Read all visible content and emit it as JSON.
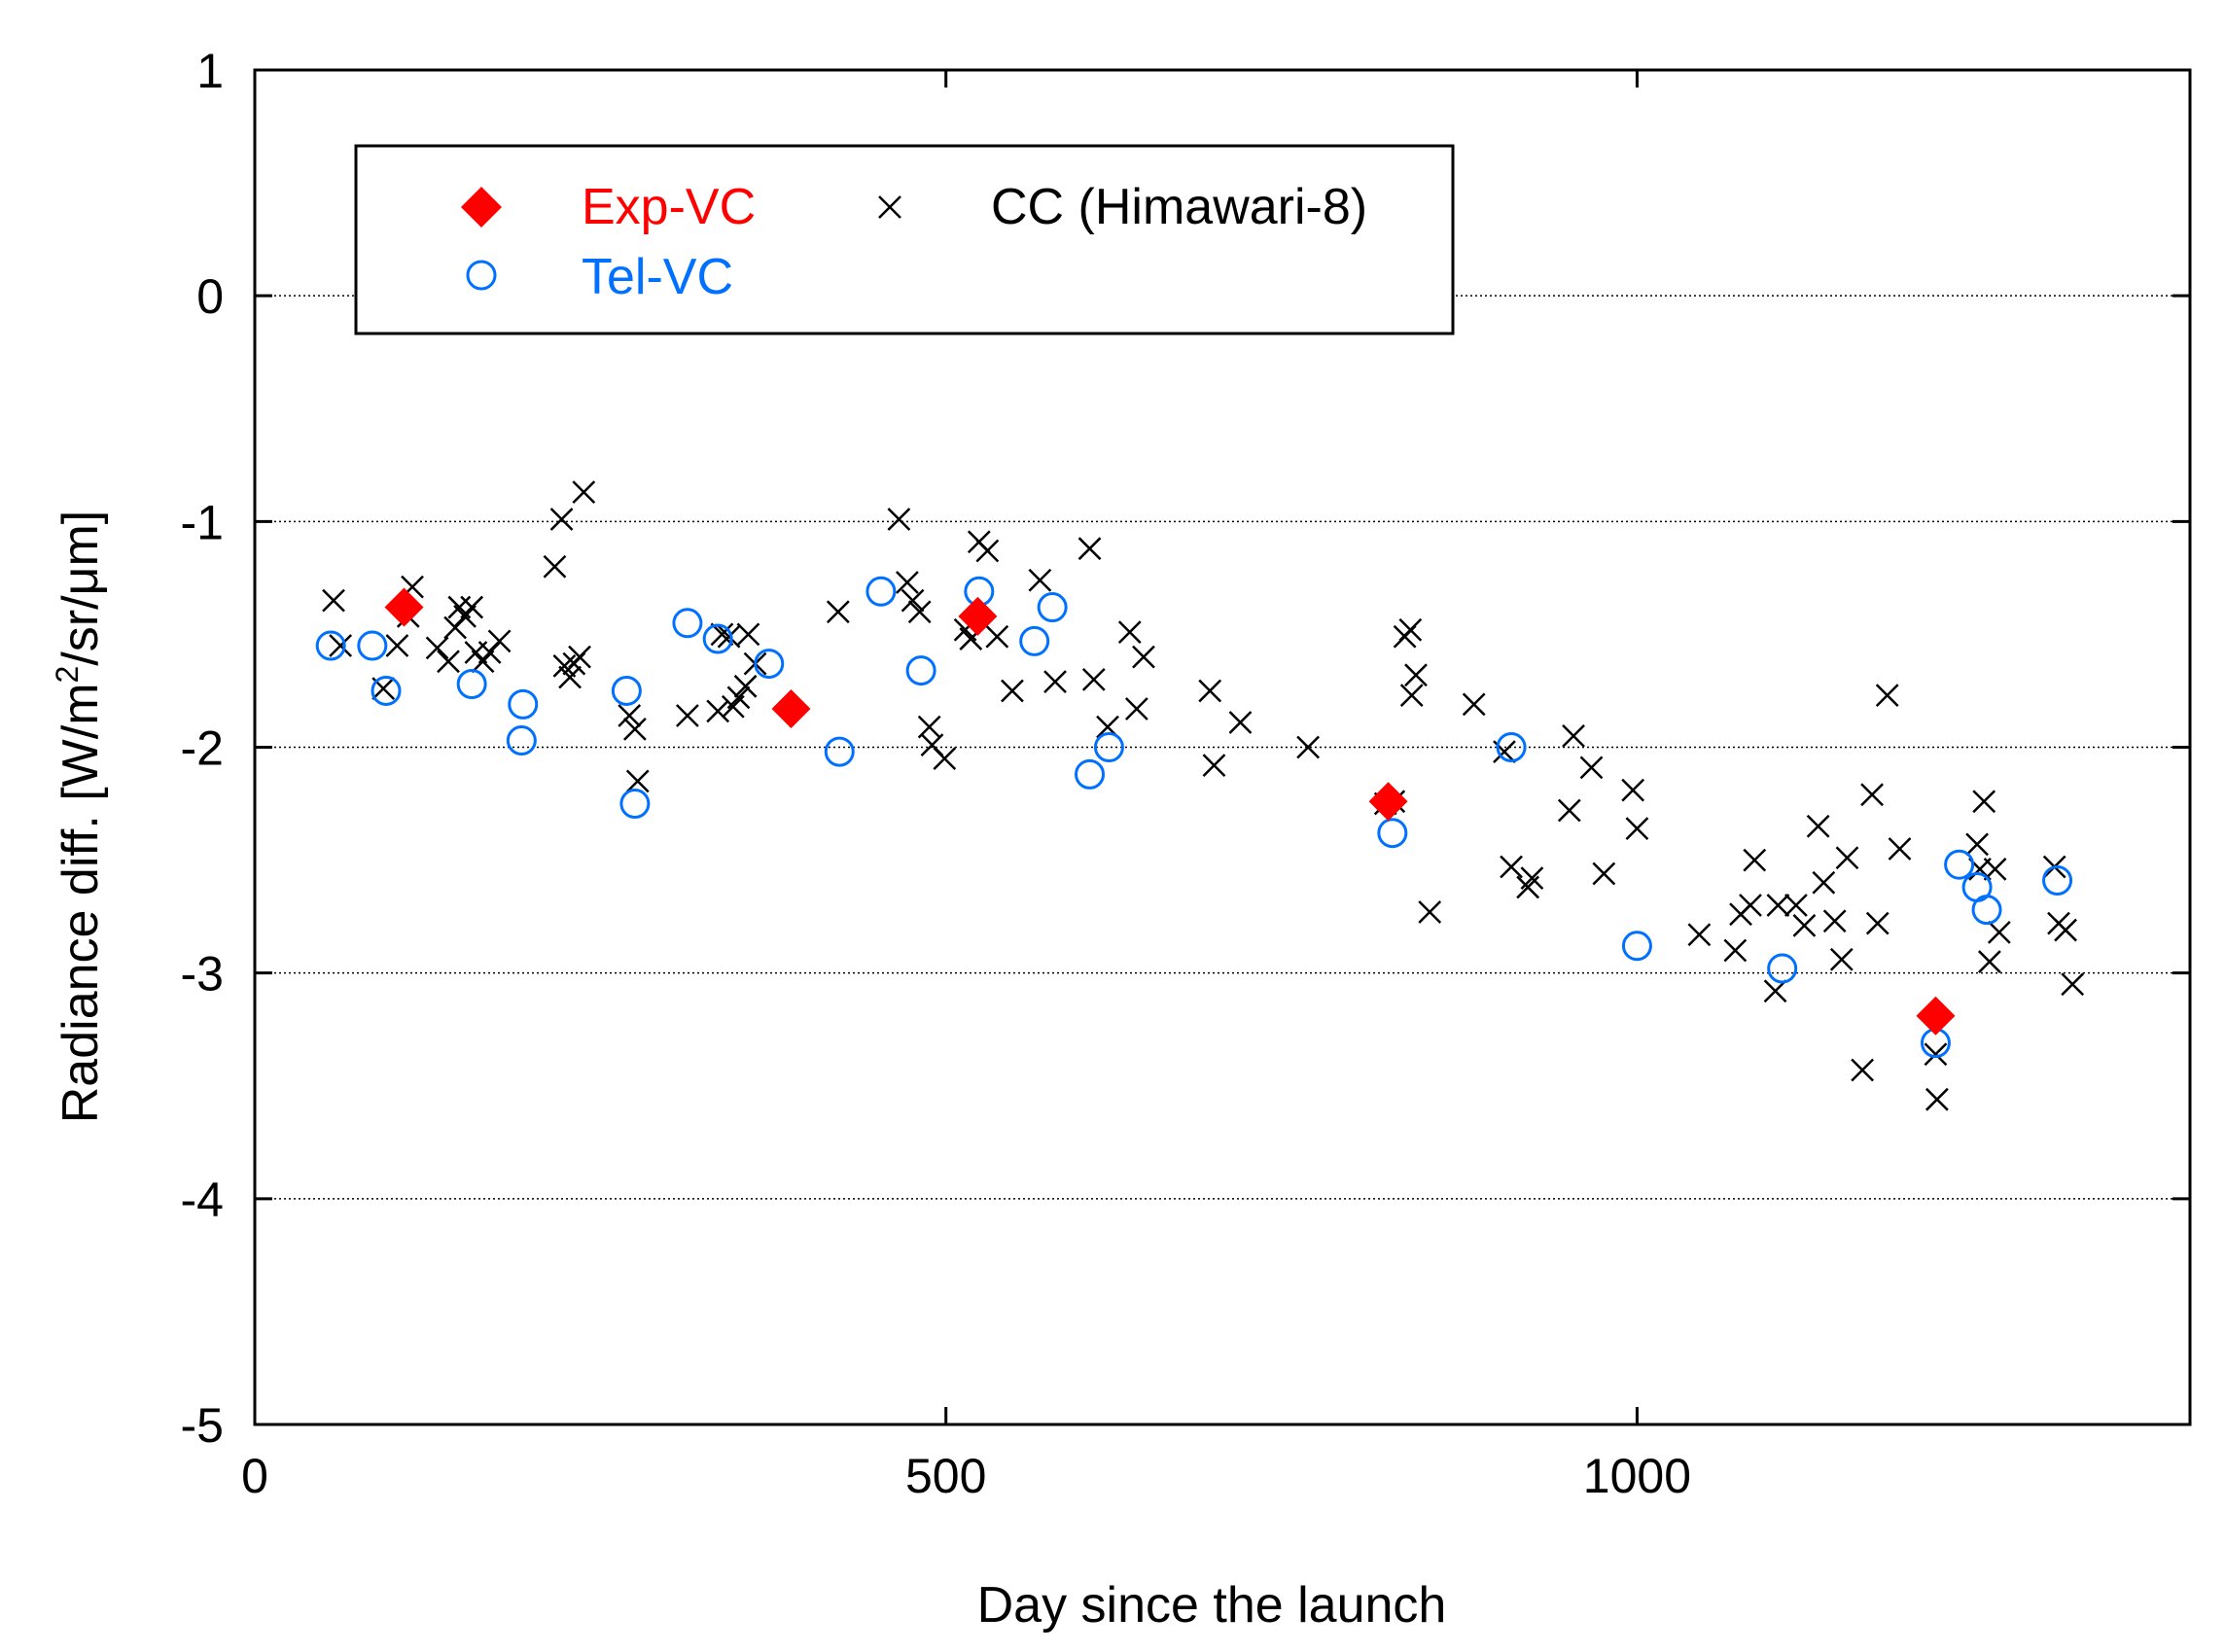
{
  "chart_data": {
    "type": "scatter",
    "title": "",
    "xlabel": "Day since the launch",
    "ylabel_main": "Radiance diff. [W/m",
    "ylabel_sup": "2",
    "ylabel_tail": "/sr/μm]",
    "xlim": [
      0,
      1400
    ],
    "ylim": [
      -5,
      1
    ],
    "xticks": [
      0,
      500,
      1000
    ],
    "yticks": [
      -5,
      -4,
      -3,
      -2,
      -1,
      0,
      1
    ],
    "xtick_labels": [
      "0",
      "500",
      "1000"
    ],
    "ytick_labels": [
      "-5",
      "-4",
      "-3",
      "-2",
      "-1",
      "0",
      "1"
    ],
    "grid": "horizontal dotted at y ticks",
    "legend_position": "top-left",
    "series": [
      {
        "name": "Exp-VC",
        "marker": "filled-diamond",
        "color": "#ff0000",
        "points": [
          [
            108,
            -1.38
          ],
          [
            388,
            -1.83
          ],
          [
            523,
            -1.42
          ],
          [
            820,
            -2.24
          ],
          [
            1216,
            -3.19
          ]
        ]
      },
      {
        "name": "Tel-VC",
        "marker": "open-circle",
        "color": "#0070ff",
        "points": [
          [
            55,
            -1.55
          ],
          [
            85,
            -1.55
          ],
          [
            95,
            -1.75
          ],
          [
            157,
            -1.72
          ],
          [
            194,
            -1.81
          ],
          [
            193,
            -1.97
          ],
          [
            269,
            -1.75
          ],
          [
            275,
            -2.25
          ],
          [
            313,
            -1.45
          ],
          [
            335,
            -1.52
          ],
          [
            372,
            -1.63
          ],
          [
            423,
            -2.02
          ],
          [
            453,
            -1.31
          ],
          [
            482,
            -1.66
          ],
          [
            524,
            -1.31
          ],
          [
            564,
            -1.53
          ],
          [
            577,
            -1.38
          ],
          [
            604,
            -2.12
          ],
          [
            618,
            -2.0
          ],
          [
            823,
            -2.38
          ],
          [
            909,
            -2.0
          ],
          [
            1000,
            -2.88
          ],
          [
            1105,
            -2.98
          ],
          [
            1216,
            -3.31
          ],
          [
            1233,
            -2.52
          ],
          [
            1246,
            -2.62
          ],
          [
            1253,
            -2.72
          ],
          [
            1304,
            -2.59
          ]
        ]
      },
      {
        "name": "CC (Himawari-8)",
        "marker": "x-cross",
        "color": "#000000",
        "points": [
          [
            57,
            -1.35
          ],
          [
            62,
            -1.55
          ],
          [
            93,
            -1.74
          ],
          [
            103,
            -1.55
          ],
          [
            111,
            -1.42
          ],
          [
            114,
            -1.29
          ],
          [
            132,
            -1.56
          ],
          [
            140,
            -1.62
          ],
          [
            145,
            -1.47
          ],
          [
            148,
            -1.38
          ],
          [
            152,
            -1.42
          ],
          [
            157,
            -1.38
          ],
          [
            160,
            -1.58
          ],
          [
            165,
            -1.62
          ],
          [
            170,
            -1.58
          ],
          [
            177,
            -1.53
          ],
          [
            217,
            -1.2
          ],
          [
            222,
            -0.99
          ],
          [
            224,
            -1.64
          ],
          [
            228,
            -1.69
          ],
          [
            231,
            -1.63
          ],
          [
            235,
            -1.6
          ],
          [
            238,
            -0.87
          ],
          [
            271,
            -1.86
          ],
          [
            275,
            -1.92
          ],
          [
            277,
            -2.15
          ],
          [
            313,
            -1.86
          ],
          [
            335,
            -1.84
          ],
          [
            338,
            -1.5
          ],
          [
            343,
            -1.51
          ],
          [
            346,
            -1.82
          ],
          [
            350,
            -1.78
          ],
          [
            355,
            -1.73
          ],
          [
            357,
            -1.5
          ],
          [
            362,
            -1.63
          ],
          [
            422,
            -1.4
          ],
          [
            466,
            -0.99
          ],
          [
            472,
            -1.27
          ],
          [
            476,
            -1.35
          ],
          [
            481,
            -1.4
          ],
          [
            488,
            -1.91
          ],
          [
            490,
            -1.99
          ],
          [
            499,
            -2.05
          ],
          [
            514,
            -1.48
          ],
          [
            518,
            -1.52
          ],
          [
            524,
            -1.09
          ],
          [
            530,
            -1.13
          ],
          [
            537,
            -1.51
          ],
          [
            548,
            -1.75
          ],
          [
            568,
            -1.26
          ],
          [
            579,
            -1.71
          ],
          [
            604,
            -1.12
          ],
          [
            607,
            -1.7
          ],
          [
            617,
            -1.91
          ],
          [
            633,
            -1.49
          ],
          [
            638,
            -1.83
          ],
          [
            643,
            -1.6
          ],
          [
            691,
            -1.75
          ],
          [
            694,
            -2.08
          ],
          [
            713,
            -1.89
          ],
          [
            762,
            -2.0
          ],
          [
            818,
            -2.25
          ],
          [
            824,
            -2.24
          ],
          [
            832,
            -1.51
          ],
          [
            836,
            -1.48
          ],
          [
            837,
            -1.77
          ],
          [
            840,
            -1.68
          ],
          [
            850,
            -2.73
          ],
          [
            882,
            -1.81
          ],
          [
            904,
            -2.02
          ],
          [
            909,
            -2.53
          ],
          [
            921,
            -2.62
          ],
          [
            924,
            -2.58
          ],
          [
            951,
            -2.28
          ],
          [
            954,
            -1.95
          ],
          [
            967,
            -2.09
          ],
          [
            976,
            -2.56
          ],
          [
            997,
            -2.19
          ],
          [
            1000,
            -2.36
          ],
          [
            1045,
            -2.83
          ],
          [
            1071,
            -2.9
          ],
          [
            1075,
            -2.74
          ],
          [
            1082,
            -2.7
          ],
          [
            1085,
            -2.5
          ],
          [
            1100,
            -3.08
          ],
          [
            1102,
            -2.7
          ],
          [
            1115,
            -2.7
          ],
          [
            1121,
            -2.79
          ],
          [
            1131,
            -2.35
          ],
          [
            1135,
            -2.6
          ],
          [
            1143,
            -2.77
          ],
          [
            1148,
            -2.94
          ],
          [
            1152,
            -2.49
          ],
          [
            1163,
            -3.43
          ],
          [
            1170,
            -2.21
          ],
          [
            1174,
            -2.78
          ],
          [
            1181,
            -1.77
          ],
          [
            1190,
            -2.45
          ],
          [
            1216,
            -3.36
          ],
          [
            1217,
            -3.56
          ],
          [
            1246,
            -2.43
          ],
          [
            1248,
            -2.54
          ],
          [
            1251,
            -2.24
          ],
          [
            1255,
            -2.95
          ],
          [
            1259,
            -2.54
          ],
          [
            1262,
            -2.82
          ],
          [
            1302,
            -2.53
          ],
          [
            1305,
            -2.78
          ],
          [
            1310,
            -2.81
          ],
          [
            1315,
            -3.05
          ]
        ]
      }
    ]
  }
}
